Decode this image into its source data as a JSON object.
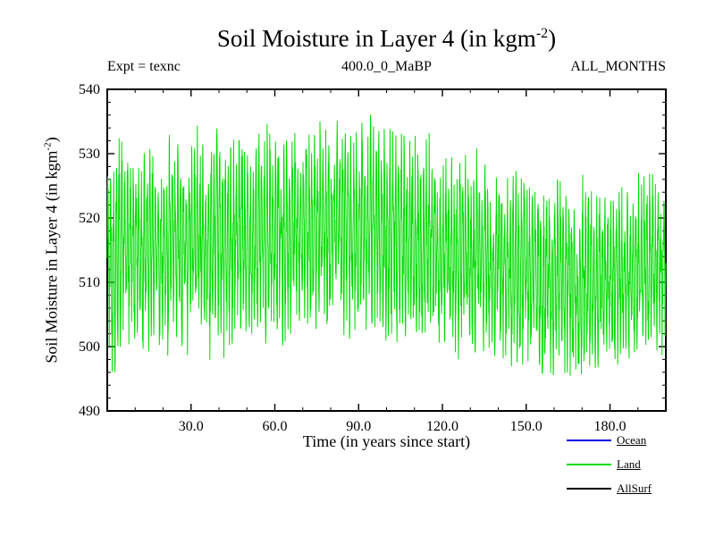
{
  "header": {
    "title_pre": "Soil Moisture in Layer 4 (in kgm",
    "title_sup": "-2",
    "title_post": ")",
    "expt_label": "Expt = texnc",
    "subtitle_center": "400.0_0_MaBP",
    "subtitle_right": "ALL_MONTHS"
  },
  "axis": {
    "ylabel_pre": "Soil Moisture in Layer 4 (in kgm",
    "ylabel_sup": "-2",
    "ylabel_post": ")",
    "xlabel": "Time (in years since start)"
  },
  "chart_data": {
    "type": "line",
    "title": "Soil Moisture in Layer 4 (in kgm-2)",
    "subtitle": "400.0_0_MaBP",
    "annotation_left": "Expt = texnc",
    "annotation_right": "ALL_MONTHS",
    "xlabel": "Time (in years since start)",
    "ylabel": "Soil Moisture in Layer 4 (in kgm-2)",
    "xlim": [
      0,
      200
    ],
    "ylim": [
      490,
      540
    ],
    "x_ticks": [
      30,
      60,
      90,
      120,
      150,
      180
    ],
    "x_tick_labels": [
      "30.0",
      "60.0",
      "90.0",
      "120.0",
      "150.0",
      "180.0"
    ],
    "x_minor_step": 10,
    "y_ticks": [
      490,
      500,
      510,
      520,
      530,
      540
    ],
    "y_tick_labels": [
      "490",
      "500",
      "510",
      "520",
      "530",
      "540"
    ],
    "y_minor_step": 2,
    "grid": false,
    "frame": "box-with-inward-ticks",
    "legend_position": "bottom-right-outside",
    "series": [
      {
        "name": "Ocean",
        "color": "#0000dd",
        "visible_in_plot": false
      },
      {
        "name": "Land",
        "color": "#00dd00",
        "visible_in_plot": true,
        "sampling": "monthly",
        "points_per_year": 12,
        "description": "Dense seasonal monthly oscillation around a slowly varying mean; envelope read from plot",
        "trend_years": [
          0,
          10,
          20,
          30,
          40,
          50,
          60,
          70,
          80,
          90,
          100,
          110,
          120,
          130,
          140,
          150,
          160,
          170,
          180,
          190,
          200
        ],
        "trend_mean": [
          514,
          516,
          515,
          516,
          517,
          516,
          517,
          518,
          518,
          519,
          518,
          517,
          515,
          514,
          513,
          512,
          510,
          509,
          511,
          512,
          513
        ],
        "trend_amplitude": [
          15,
          14,
          14,
          14,
          14,
          14,
          14,
          14,
          14,
          15,
          15,
          14,
          13,
          13,
          13,
          13,
          13,
          13,
          12,
          12,
          12
        ],
        "approx_max": 536,
        "approx_min": 496
      },
      {
        "name": "AllSurf",
        "color": "#000000",
        "visible_in_plot": false
      }
    ],
    "legend": {
      "entries": [
        {
          "label": "Ocean",
          "color": "#0000dd"
        },
        {
          "label": "Land",
          "color": "#00dd00"
        },
        {
          "label": "AllSurf",
          "color": "#000000"
        }
      ]
    }
  }
}
